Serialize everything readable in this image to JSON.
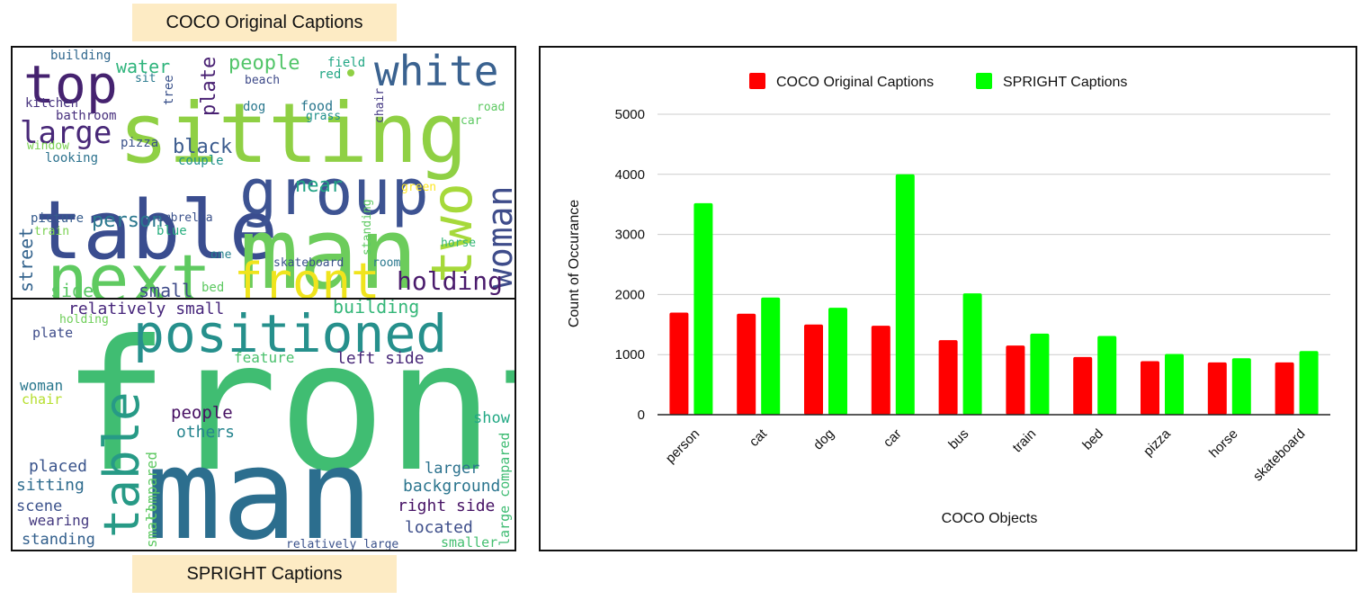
{
  "labels": {
    "top": "COCO Original Captions",
    "bottom": "SPRIGHT Captions"
  },
  "wordclouds": {
    "coco": [
      {
        "t": "sitting",
        "c": "#8fd044"
      },
      {
        "t": "table",
        "c": "#3a4d8f"
      },
      {
        "t": "man",
        "c": "#6ccc5b"
      },
      {
        "t": "group",
        "c": "#3d5392"
      },
      {
        "t": "next",
        "c": "#5fca60"
      },
      {
        "t": "front",
        "c": "#f0e41d"
      },
      {
        "t": "top",
        "c": "#45226f"
      },
      {
        "t": "white",
        "c": "#3a6290"
      },
      {
        "t": "two",
        "c": "#a6d93a"
      },
      {
        "t": "woman",
        "c": "#3e4c8a"
      },
      {
        "t": "large",
        "c": "#482878"
      },
      {
        "t": "holding",
        "c": "#4a1b6c"
      },
      {
        "t": "black",
        "c": "#3b5b8e"
      },
      {
        "t": "person",
        "c": "#2a778e"
      },
      {
        "t": "water",
        "c": "#2fb47c"
      },
      {
        "t": "people",
        "c": "#52c569"
      },
      {
        "t": "plate",
        "c": "#482072"
      },
      {
        "t": "near",
        "c": "#22a385"
      },
      {
        "t": "street",
        "c": "#33638d"
      },
      {
        "t": "side",
        "c": "#5ac864"
      },
      {
        "t": "small",
        "c": "#3e4a89"
      },
      {
        "t": "building",
        "c": "#31688e"
      },
      {
        "t": "kitchen",
        "c": "#46327e"
      },
      {
        "t": "bathroom",
        "c": "#472f7d"
      },
      {
        "t": "window",
        "c": "#7ad151"
      },
      {
        "t": "pizza",
        "c": "#3b528b"
      },
      {
        "t": "looking",
        "c": "#2c728e"
      },
      {
        "t": "couple",
        "c": "#20928c"
      },
      {
        "t": "picture",
        "c": "#365c8d"
      },
      {
        "t": "train",
        "c": "#7ad151"
      },
      {
        "t": "sit",
        "c": "#29798e"
      },
      {
        "t": "tree",
        "c": "#3b528b"
      },
      {
        "t": "beach",
        "c": "#3e4a89"
      },
      {
        "t": "dog",
        "c": "#2a788e"
      },
      {
        "t": "food",
        "c": "#2a778e"
      },
      {
        "t": "grass",
        "c": "#21918c"
      },
      {
        "t": "field",
        "c": "#22a785"
      },
      {
        "t": "red",
        "c": "#22a785"
      },
      {
        "t": "chair",
        "c": "#443983"
      },
      {
        "t": "road",
        "c": "#5ec962"
      },
      {
        "t": "car",
        "c": "#5ec962"
      },
      {
        "t": "green",
        "c": "#fde725"
      },
      {
        "t": "standing",
        "c": "#5ec962"
      },
      {
        "t": "umbrella",
        "c": "#3b528b"
      },
      {
        "t": "blue",
        "c": "#29af7f"
      },
      {
        "t": "one",
        "c": "#26828e"
      },
      {
        "t": "skateboard",
        "c": "#3b528b"
      },
      {
        "t": "room",
        "c": "#2a788e"
      },
      {
        "t": "horse",
        "c": "#35b779"
      },
      {
        "t": "bed",
        "c": "#5ec962"
      }
    ],
    "spright": [
      {
        "t": "front",
        "c": "#40bd72"
      },
      {
        "t": "man",
        "c": "#2c6e8e"
      },
      {
        "t": "positioned",
        "c": "#26908c"
      },
      {
        "t": "table",
        "c": "#279a86"
      },
      {
        "t": "relatively small",
        "c": "#45247a"
      },
      {
        "t": "holding",
        "c": "#6ece58"
      },
      {
        "t": "building",
        "c": "#35b779"
      },
      {
        "t": "plate",
        "c": "#3e4c8a"
      },
      {
        "t": "feature",
        "c": "#4ac16d"
      },
      {
        "t": "left side",
        "c": "#482878"
      },
      {
        "t": "woman",
        "c": "#2a788e"
      },
      {
        "t": "chair",
        "c": "#b5de2b"
      },
      {
        "t": "compared",
        "c": "#5ec962"
      },
      {
        "t": "small",
        "c": "#5ec962"
      },
      {
        "t": "people",
        "c": "#471063"
      },
      {
        "t": "others",
        "c": "#25848e"
      },
      {
        "t": "show",
        "c": "#22a884"
      },
      {
        "t": "placed",
        "c": "#3a548c"
      },
      {
        "t": "sitting",
        "c": "#2f6c8e"
      },
      {
        "t": "scene",
        "c": "#3b528b"
      },
      {
        "t": "wearing",
        "c": "#44397f"
      },
      {
        "t": "standing",
        "c": "#33608d"
      },
      {
        "t": "larger",
        "c": "#2c728e"
      },
      {
        "t": "background",
        "c": "#2b758e"
      },
      {
        "t": "right side",
        "c": "#471365"
      },
      {
        "t": "located",
        "c": "#3d4e8a"
      },
      {
        "t": "relatively large",
        "c": "#3b528b"
      },
      {
        "t": "smaller",
        "c": "#44bf70"
      },
      {
        "t": "large compared",
        "c": "#3fbc73"
      }
    ]
  },
  "chart_data": {
    "type": "bar",
    "title": "",
    "xlabel": "COCO Objects",
    "ylabel": "Count of Occurance",
    "categories": [
      "person",
      "cat",
      "dog",
      "car",
      "bus",
      "train",
      "bed",
      "pizza",
      "horse",
      "skateboard"
    ],
    "series": [
      {
        "name": "COCO Original Captions",
        "color": "#ff0000",
        "values": [
          1700,
          1680,
          1500,
          1480,
          1240,
          1150,
          960,
          890,
          870,
          870
        ]
      },
      {
        "name": "SPRIGHT Captions",
        "color": "#00ff00",
        "values": [
          3520,
          1950,
          1780,
          4000,
          2020,
          1350,
          1310,
          1010,
          940,
          1060
        ]
      }
    ],
    "ylim": [
      0,
      5000
    ],
    "yticks": [
      0,
      1000,
      2000,
      3000,
      4000,
      5000
    ],
    "grid": true,
    "legend": "top"
  }
}
